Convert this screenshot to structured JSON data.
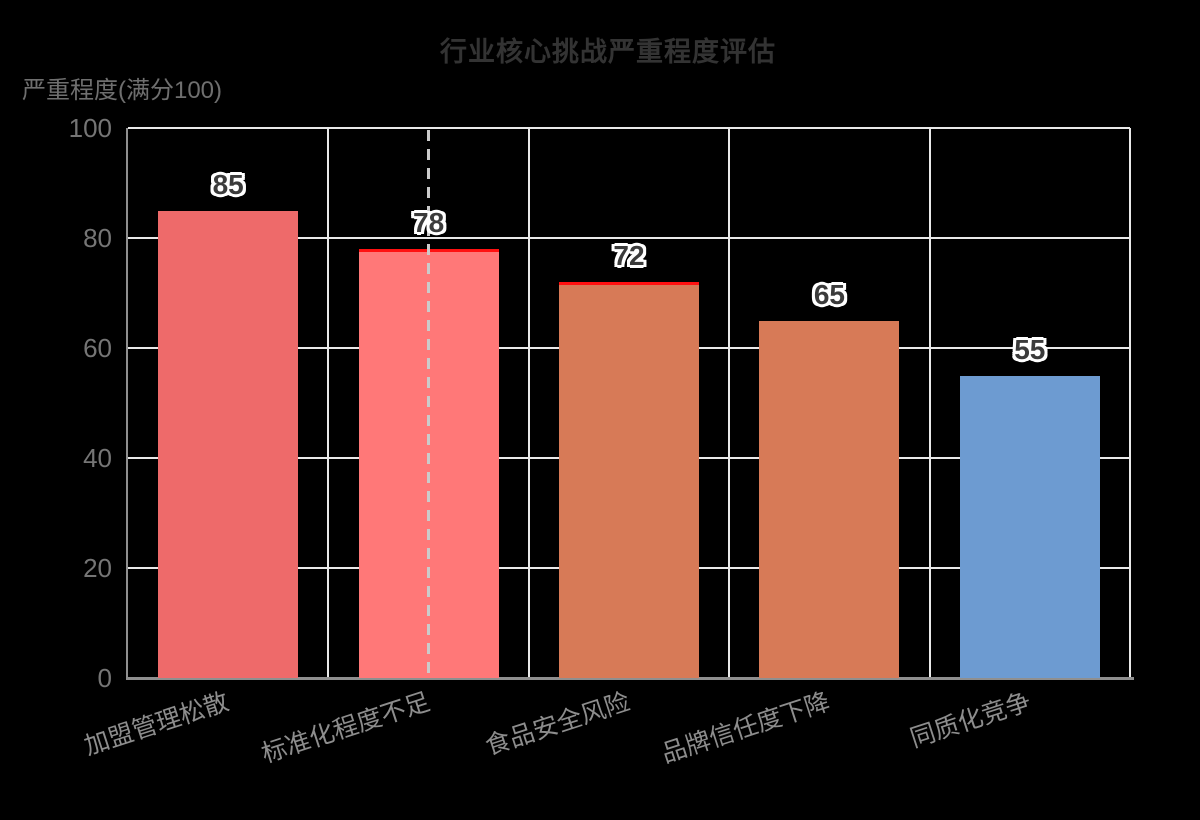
{
  "chart_data": {
    "type": "bar",
    "title": "行业核心挑战严重程度评估",
    "ylabel": "严重程度(满分100)",
    "xlabel": "",
    "categories": [
      "加盟管理松散",
      "标准化程度不足",
      "食品安全风险",
      "品牌信任度下降",
      "同质化竞争"
    ],
    "values": [
      85,
      78,
      72,
      65,
      55
    ],
    "ylim": [
      0,
      100
    ],
    "yticks": [
      0,
      20,
      40,
      60,
      80,
      100
    ],
    "grid": true,
    "legend_position": "none",
    "category_label_rotation_deg": -18,
    "bar_colors": [
      "#ee6a6a",
      "#ff7878",
      "#d77a57",
      "#d77a57",
      "#6d9bd1"
    ],
    "bar_top_border": [
      false,
      true,
      true,
      false,
      false
    ],
    "bar_top_border_color": "#ff1111",
    "reference_line": {
      "orientation": "vertical",
      "category_index": 1,
      "style": "dashed",
      "color": "#cbcbcb"
    },
    "colors": {
      "background": "#000000",
      "title": "#333333",
      "axis": "#8f8f8f",
      "grid": "#e9e9e9",
      "tick_label": "#757575",
      "category_label": "#8d8d8d",
      "value_label": "#3b3b3b",
      "value_label_outline": "#ffffff",
      "axis_name": "#6f6f6f"
    }
  }
}
